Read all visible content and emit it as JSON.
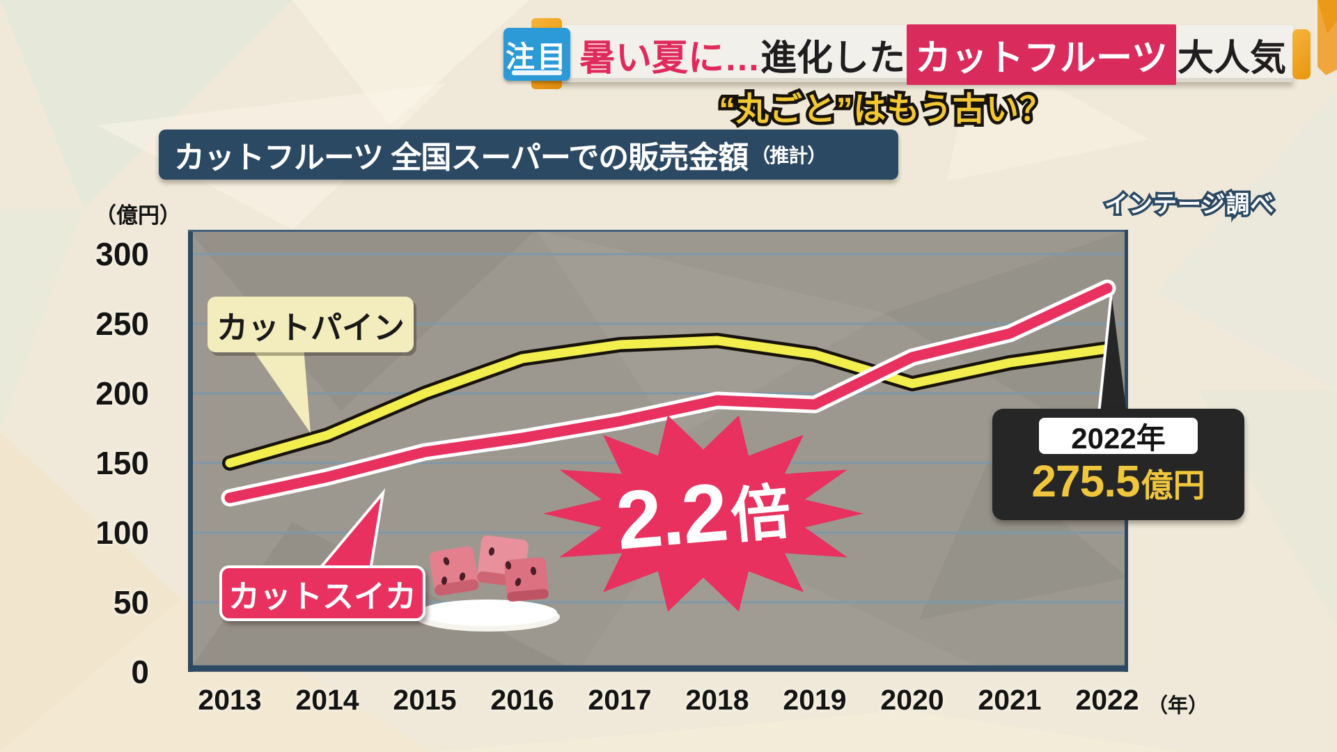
{
  "colors": {
    "page_bg": "#F0E9D9",
    "plot_bg": "#9C9890",
    "navy": "#2C4963",
    "badge_blue": "#2D9AD8",
    "accent_pink": "#E8315F",
    "line_yellow": "#F2EE4E",
    "gold": "#F0A63C",
    "subtitle_yellow": "#F2C832",
    "callout_bg": "#262626",
    "callout_value_yellow": "#F0C73C"
  },
  "header": {
    "badge": "注目",
    "title_pink": "暑い夏に…",
    "title_dark1": "進化した",
    "title_highlight": "カットフルーツ",
    "title_dark2": "大人気",
    "subtitle": "“丸ごと”はもう古い？"
  },
  "chart_header": {
    "title": "カットフルーツ 全国スーパーでの販売金額",
    "title_suffix": "（推計）",
    "source": "インテージ調べ"
  },
  "axis": {
    "unit": "（億円）",
    "year_suffix": "（年）"
  },
  "labels": {
    "pine": "カットパイン",
    "suika": "カットスイカ",
    "multiplier_num": "2.2",
    "multiplier_unit": "倍",
    "callout_year": "2022年",
    "callout_value": "275.5",
    "callout_value_unit": "億円"
  },
  "chart_data": {
    "type": "line",
    "title": "カットフルーツ 全国スーパーでの販売金額（推計）",
    "source": "インテージ調べ",
    "ylabel": "億円",
    "xlabel": "年",
    "ylim": [
      0,
      300
    ],
    "yticks": [
      300,
      250,
      200,
      150,
      100,
      50,
      0
    ],
    "grid": true,
    "categories": [
      "2013",
      "2014",
      "2015",
      "2016",
      "2017",
      "2018",
      "2019",
      "2020",
      "2021",
      "2022"
    ],
    "series": [
      {
        "name": "カットパイン",
        "color": "#F2EE4E",
        "values": [
          150,
          170,
          200,
          225,
          235,
          238,
          228,
          207,
          222,
          232
        ]
      },
      {
        "name": "カットスイカ",
        "color": "#E8315F",
        "values": [
          125,
          140,
          158,
          168,
          180,
          195,
          192,
          226,
          243,
          275.5
        ]
      }
    ],
    "annotations": {
      "multiplier": "2.2倍",
      "callout": {
        "year": "2022年",
        "value_oku_yen": 275.5
      }
    }
  }
}
